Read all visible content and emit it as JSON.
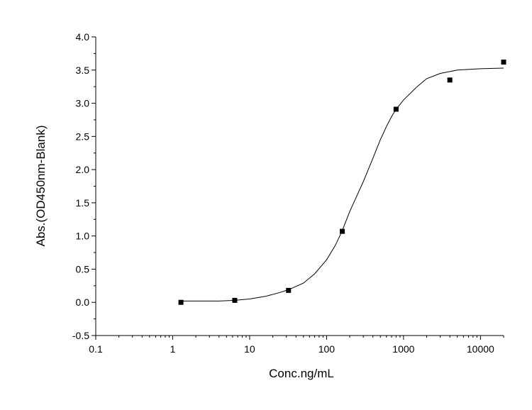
{
  "chart_data": {
    "type": "scatter",
    "xlabel": "Conc.ng/mL",
    "ylabel": "Abs.(OD450nm-Blank)",
    "x_scale": "log",
    "xlim": [
      0.1,
      20000
    ],
    "ylim": [
      -0.5,
      4.0
    ],
    "x_ticks": [
      "0.1",
      "1",
      "10",
      "100",
      "1000",
      "10000"
    ],
    "y_ticks": [
      "-0.5",
      "0.0",
      "0.5",
      "1.0",
      "1.5",
      "2.0",
      "2.5",
      "3.0",
      "3.5",
      "4.0"
    ],
    "grid": false,
    "series": [
      {
        "kind": "points",
        "marker": "square",
        "x": [
          1.28,
          6.4,
          32,
          160,
          800,
          4000,
          20000
        ],
        "y": [
          0.0,
          0.03,
          0.18,
          1.07,
          2.91,
          3.35,
          3.62
        ]
      },
      {
        "kind": "fit-curve",
        "x": [
          1.28,
          2,
          4,
          6.4,
          10,
          16,
          25,
          32,
          50,
          70,
          100,
          130,
          160,
          200,
          300,
          400,
          500,
          600,
          700,
          800,
          1000,
          1500,
          2000,
          3000,
          5000,
          10000,
          20000
        ],
        "y": [
          0.02,
          0.02,
          0.02,
          0.03,
          0.05,
          0.09,
          0.15,
          0.19,
          0.29,
          0.43,
          0.64,
          0.86,
          1.08,
          1.37,
          1.82,
          2.17,
          2.45,
          2.65,
          2.8,
          2.91,
          3.05,
          3.25,
          3.37,
          3.45,
          3.5,
          3.52,
          3.53
        ]
      }
    ],
    "colors": {
      "marker": "#000000",
      "line": "#000000",
      "axis": "#000000"
    }
  }
}
